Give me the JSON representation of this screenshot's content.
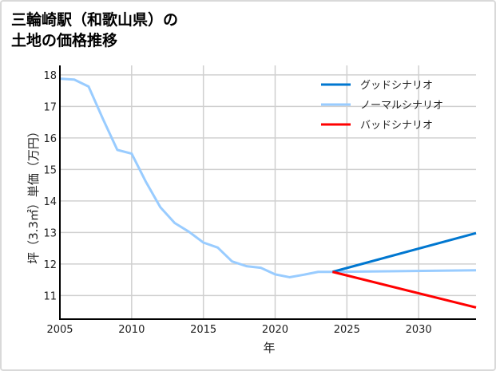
{
  "chart_data": {
    "type": "line",
    "title_lines": [
      "三輪崎駅（和歌山県）の",
      "土地の価格推移"
    ],
    "xlabel": "年",
    "ylabel": "坪（3.3㎡）単価（万円）",
    "xlim": [
      2005,
      2034
    ],
    "ylim": [
      10.25,
      18.3
    ],
    "xticks": [
      2005,
      2010,
      2015,
      2020,
      2025,
      2030
    ],
    "yticks": [
      11,
      12,
      13,
      14,
      15,
      16,
      17,
      18
    ],
    "grid": true,
    "legend_position": "top-right",
    "series": [
      {
        "name": "グッドシナリオ",
        "color": "#0077d0",
        "x": [
          2024,
          2034
        ],
        "y": [
          11.75,
          12.98
        ]
      },
      {
        "name": "ノーマルシナリオ",
        "color": "#99ccff",
        "x": [
          2005,
          2006,
          2007,
          2008,
          2009,
          2010,
          2011,
          2012,
          2013,
          2014,
          2015,
          2016,
          2017,
          2018,
          2019,
          2020,
          2021,
          2022,
          2023,
          2024,
          2034
        ],
        "y": [
          17.88,
          17.85,
          17.63,
          16.6,
          15.62,
          15.5,
          14.6,
          13.8,
          13.3,
          13.02,
          12.68,
          12.52,
          12.08,
          11.93,
          11.88,
          11.67,
          11.58,
          11.66,
          11.75,
          11.75,
          11.8
        ]
      },
      {
        "name": "バッドシナリオ",
        "color": "#ff0000",
        "x": [
          2024,
          2034
        ],
        "y": [
          11.75,
          10.62
        ]
      }
    ]
  }
}
